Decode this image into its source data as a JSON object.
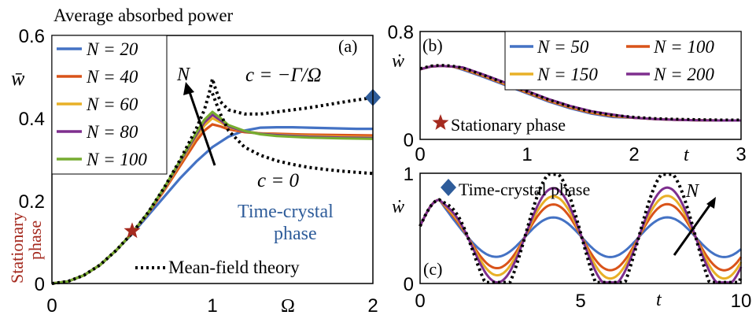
{
  "chart_data": [
    {
      "panel": "(a)",
      "type": "line",
      "title": "Average absorbed power",
      "xlabel": "Ω",
      "ylabel": "w̄",
      "xlim": [
        0,
        2
      ],
      "ylim": [
        0,
        0.6
      ],
      "xticks": [
        "0",
        "1",
        "2"
      ],
      "yticks": [
        "0",
        "0.2",
        "0.4",
        "0.6"
      ],
      "legend_position": "top-left",
      "series": [
        {
          "name": "N = 20",
          "color": "#4472c4",
          "x": [
            0,
            0.1,
            0.2,
            0.3,
            0.4,
            0.5,
            0.6,
            0.7,
            0.8,
            0.9,
            1.0,
            1.1,
            1.2,
            1.3,
            1.4,
            1.5,
            1.6,
            1.7,
            1.8,
            1.9,
            2.0
          ],
          "y": [
            0,
            0.005,
            0.02,
            0.045,
            0.08,
            0.12,
            0.165,
            0.21,
            0.255,
            0.295,
            0.33,
            0.355,
            0.37,
            0.377,
            0.378,
            0.378,
            0.377,
            0.376,
            0.375,
            0.374,
            0.374
          ]
        },
        {
          "name": "N = 40",
          "color": "#d95319",
          "x": [
            0,
            0.1,
            0.2,
            0.3,
            0.4,
            0.5,
            0.6,
            0.7,
            0.8,
            0.9,
            0.95,
            1.0,
            1.05,
            1.1,
            1.2,
            1.3,
            1.4,
            1.6,
            1.8,
            2.0
          ],
          "y": [
            0,
            0.005,
            0.02,
            0.045,
            0.08,
            0.122,
            0.17,
            0.225,
            0.285,
            0.345,
            0.37,
            0.385,
            0.38,
            0.373,
            0.366,
            0.363,
            0.362,
            0.36,
            0.359,
            0.358
          ]
        },
        {
          "name": "N = 60",
          "color": "#e8b027",
          "x": [
            0,
            0.1,
            0.2,
            0.3,
            0.4,
            0.5,
            0.6,
            0.7,
            0.8,
            0.9,
            0.95,
            1.0,
            1.05,
            1.1,
            1.2,
            1.3,
            1.4,
            1.6,
            1.8,
            2.0
          ],
          "y": [
            0,
            0.005,
            0.02,
            0.045,
            0.08,
            0.122,
            0.171,
            0.228,
            0.292,
            0.355,
            0.382,
            0.4,
            0.39,
            0.378,
            0.368,
            0.363,
            0.36,
            0.357,
            0.355,
            0.354
          ]
        },
        {
          "name": "N = 80",
          "color": "#7e2f8e",
          "x": [
            0,
            0.1,
            0.2,
            0.3,
            0.4,
            0.5,
            0.6,
            0.7,
            0.8,
            0.9,
            0.95,
            1.0,
            1.05,
            1.1,
            1.2,
            1.3,
            1.4,
            1.6,
            1.8,
            2.0
          ],
          "y": [
            0,
            0.005,
            0.02,
            0.045,
            0.08,
            0.122,
            0.172,
            0.23,
            0.295,
            0.36,
            0.39,
            0.408,
            0.395,
            0.38,
            0.368,
            0.362,
            0.359,
            0.355,
            0.353,
            0.352
          ]
        },
        {
          "name": "N = 100",
          "color": "#77ac30",
          "x": [
            0,
            0.1,
            0.2,
            0.3,
            0.4,
            0.5,
            0.6,
            0.7,
            0.8,
            0.9,
            0.95,
            1.0,
            1.05,
            1.1,
            1.2,
            1.3,
            1.4,
            1.6,
            1.8,
            2.0
          ],
          "y": [
            0,
            0.005,
            0.02,
            0.045,
            0.08,
            0.122,
            0.172,
            0.232,
            0.298,
            0.365,
            0.396,
            0.415,
            0.4,
            0.383,
            0.369,
            0.361,
            0.357,
            0.353,
            0.351,
            0.35
          ]
        },
        {
          "name": "Mean-field theory (c = −Γ/Ω)",
          "color": "#000000",
          "dashed": true,
          "x": [
            0,
            0.1,
            0.2,
            0.3,
            0.4,
            0.5,
            0.6,
            0.7,
            0.8,
            0.9,
            0.95,
            0.98,
            1.0,
            1.02,
            1.05,
            1.1,
            1.2,
            1.3,
            1.4,
            1.6,
            1.8,
            2.0
          ],
          "y": [
            0,
            0.005,
            0.02,
            0.045,
            0.08,
            0.122,
            0.172,
            0.232,
            0.3,
            0.375,
            0.42,
            0.46,
            0.495,
            0.47,
            0.44,
            0.42,
            0.41,
            0.41,
            0.415,
            0.425,
            0.438,
            0.45
          ]
        },
        {
          "name": "Mean-field theory (c = 0)",
          "color": "#000000",
          "dashed": true,
          "x": [
            1.0,
            1.05,
            1.1,
            1.2,
            1.3,
            1.4,
            1.5,
            1.6,
            1.7,
            1.8,
            1.9,
            2.0
          ],
          "y": [
            0.46,
            0.41,
            0.37,
            0.33,
            0.31,
            0.297,
            0.288,
            0.281,
            0.276,
            0.272,
            0.269,
            0.266
          ]
        }
      ],
      "markers": [
        {
          "shape": "star",
          "color": "#a52a1f",
          "x": 0.5,
          "y": 0.127
        },
        {
          "shape": "diamond",
          "color": "#2e5c9a",
          "x": 2.0,
          "y": 0.45
        }
      ],
      "annotations": {
        "panel_label": "(a)",
        "arrow_label": "N",
        "c_gamma": "c = −Γ/Ω",
        "c_zero": "c = 0",
        "tc_line1": "Time-crystal",
        "tc_line2": "phase",
        "stat_line1": "Stationary",
        "stat_line2": "phase",
        "mft": "Mean-field theory"
      }
    },
    {
      "panel": "(b)",
      "type": "line",
      "xlabel": "t",
      "ylabel": "ẇ",
      "xlim": [
        0,
        3
      ],
      "ylim": [
        0,
        0.8
      ],
      "xticks": [
        "0",
        "1",
        "2",
        "3"
      ],
      "yticks": [
        "0",
        "0.8"
      ],
      "legend_position": "top-right",
      "series": [
        {
          "name": "N = 50",
          "color": "#4472c4"
        },
        {
          "name": "N = 100",
          "color": "#d95319"
        },
        {
          "name": "N = 150",
          "color": "#e8b027"
        },
        {
          "name": "N = 200",
          "color": "#7e2f8e"
        }
      ],
      "curve": {
        "x": [
          0,
          0.1,
          0.2,
          0.3,
          0.4,
          0.6,
          0.8,
          1.0,
          1.2,
          1.4,
          1.6,
          1.8,
          2.0,
          2.2,
          2.4,
          2.6,
          2.8,
          3.0
        ],
        "y": [
          0.52,
          0.54,
          0.545,
          0.54,
          0.525,
          0.47,
          0.41,
          0.35,
          0.29,
          0.24,
          0.2,
          0.175,
          0.16,
          0.15,
          0.145,
          0.142,
          0.14,
          0.14
        ]
      },
      "markers": [
        {
          "shape": "star",
          "color": "#a52a1f"
        }
      ],
      "annotations": {
        "panel_label": "(b)",
        "phase": "Stationary phase"
      }
    },
    {
      "panel": "(c)",
      "type": "line",
      "xlabel": "t",
      "ylabel": "ẇ",
      "xlim": [
        0,
        10
      ],
      "ylim": [
        0,
        1
      ],
      "xticks": [
        "0",
        "5",
        "10"
      ],
      "yticks": [
        "0",
        "1"
      ],
      "series": [
        {
          "name": "N = 50",
          "color": "#4472c4",
          "amp": 0.12
        },
        {
          "name": "N = 100",
          "color": "#d95319",
          "amp": 0.2
        },
        {
          "name": "N = 150",
          "color": "#e8b027",
          "amp": 0.25
        },
        {
          "name": "N = 200",
          "color": "#7e2f8e",
          "amp": 0.3
        },
        {
          "name": "Mean-field theory",
          "color": "#000000",
          "dashed": true,
          "amp": 0.4
        }
      ],
      "markers": [
        {
          "shape": "diamond",
          "color": "#2e5c9a"
        }
      ],
      "annotations": {
        "panel_label": "(c)",
        "phase": "Time-crystal phase",
        "arrow_label": "N"
      }
    }
  ]
}
